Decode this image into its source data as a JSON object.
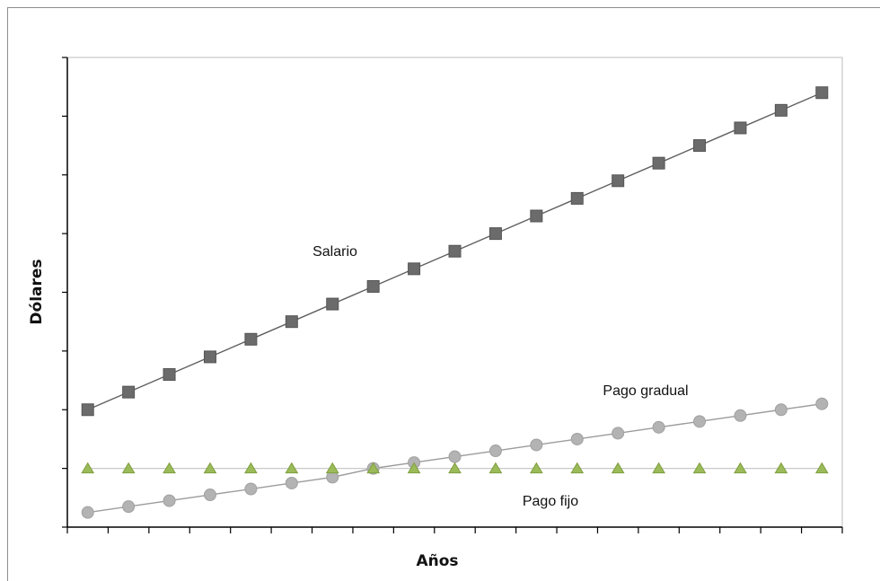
{
  "chart_data": {
    "type": "line",
    "title": "",
    "xlabel": "Años",
    "ylabel": "Dólares",
    "x": [
      1,
      2,
      3,
      4,
      5,
      6,
      7,
      8,
      9,
      10,
      11,
      12,
      13,
      14,
      15,
      16,
      17,
      18,
      19
    ],
    "xlim": [
      0.5,
      19.5
    ],
    "ylim": [
      0,
      8
    ],
    "y_ticks": [
      0,
      1,
      2,
      3,
      4,
      5,
      6,
      7,
      8
    ],
    "grid": false,
    "legend": "none",
    "series": [
      {
        "name": "Salario",
        "color": "#6b6b6b",
        "marker": "square",
        "values": [
          2.0,
          2.3,
          2.6,
          2.9,
          3.2,
          3.5,
          3.8,
          4.1,
          4.4,
          4.7,
          5.0,
          5.3,
          5.6,
          5.9,
          6.2,
          6.5,
          6.8,
          7.1,
          7.4
        ]
      },
      {
        "name": "Pago gradual",
        "color": "#b3b3b3",
        "marker": "circle",
        "values": [
          0.25,
          0.35,
          0.45,
          0.55,
          0.65,
          0.75,
          0.85,
          1.0,
          1.1,
          1.2,
          1.3,
          1.4,
          1.5,
          1.6,
          1.7,
          1.8,
          1.9,
          2.0,
          2.1
        ]
      },
      {
        "name": "Pago fijo",
        "color": "#9bbb59",
        "marker": "triangle",
        "values": [
          1.0,
          1.0,
          1.0,
          1.0,
          1.0,
          1.0,
          1.0,
          1.0,
          1.0,
          1.0,
          1.0,
          1.0,
          1.0,
          1.0,
          1.0,
          1.0,
          1.0,
          1.0,
          1.0
        ]
      }
    ]
  }
}
